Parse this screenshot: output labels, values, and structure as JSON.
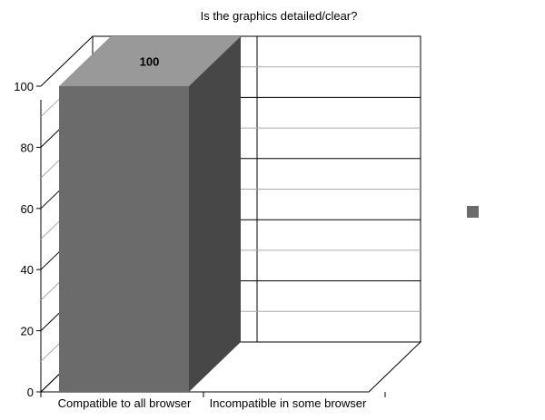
{
  "chart_data": {
    "type": "bar",
    "title": "Is the graphics detailed/clear?",
    "categories": [
      "Compatible to all browser",
      "Incompatible in some browser"
    ],
    "series": [
      {
        "values": [
          100,
          0
        ],
        "labels": [
          "100",
          ""
        ],
        "color": "#6b6b6b"
      }
    ],
    "ylim": [
      0,
      100
    ],
    "yticks": [
      0,
      20,
      40,
      60,
      80,
      100
    ],
    "grid": true,
    "legend": "right",
    "style": "3d"
  }
}
